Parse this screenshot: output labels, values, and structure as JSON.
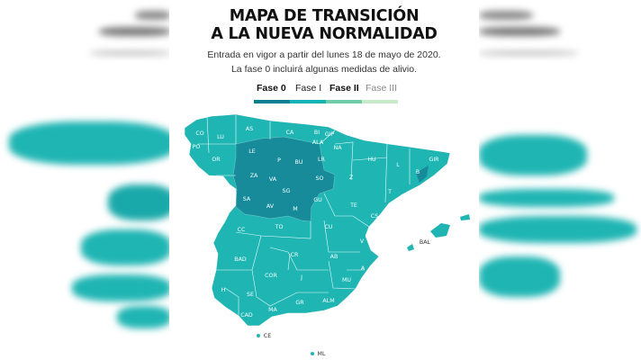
{
  "title_line1": "MAPA DE TRANSICIÓN",
  "title_line2": "A LA NUEVA NORMALIDAD",
  "subtitle_line1": "Entrada en vigor a partir del lunes 18 de mayo de 2020.",
  "subtitle_line2": "La fase 0 incluirá algunas medidas de alivio.",
  "legend": [
    {
      "label": "Fase 0",
      "color": "#0b7f92"
    },
    {
      "label": "Fase I",
      "color": "#13b3b6"
    },
    {
      "label": "Fase II",
      "color": "#6fcba8"
    },
    {
      "label": "Fase III",
      "color": "#c5ebc9"
    }
  ],
  "map": {
    "fase_i_color": "#1fb5b3",
    "fase_0_color": "#178b9a",
    "province_labels": [
      "CO",
      "LU",
      "AS",
      "CA",
      "BI",
      "GIP",
      "ALA",
      "NA",
      "PO",
      "OR",
      "LE",
      "P",
      "BU",
      "LR",
      "HU",
      "L",
      "GIR",
      "B",
      "ZA",
      "VA",
      "SO",
      "Z",
      "T",
      "SA",
      "SG",
      "AV",
      "M",
      "GU",
      "TE",
      "CS",
      "CC",
      "TO",
      "CU",
      "V",
      "BAL",
      "BAD",
      "CR",
      "AB",
      "A",
      "COR",
      "J",
      "MU",
      "H",
      "SE",
      "GR",
      "ALM",
      "MA",
      "CAD",
      "CE",
      "ML"
    ]
  }
}
